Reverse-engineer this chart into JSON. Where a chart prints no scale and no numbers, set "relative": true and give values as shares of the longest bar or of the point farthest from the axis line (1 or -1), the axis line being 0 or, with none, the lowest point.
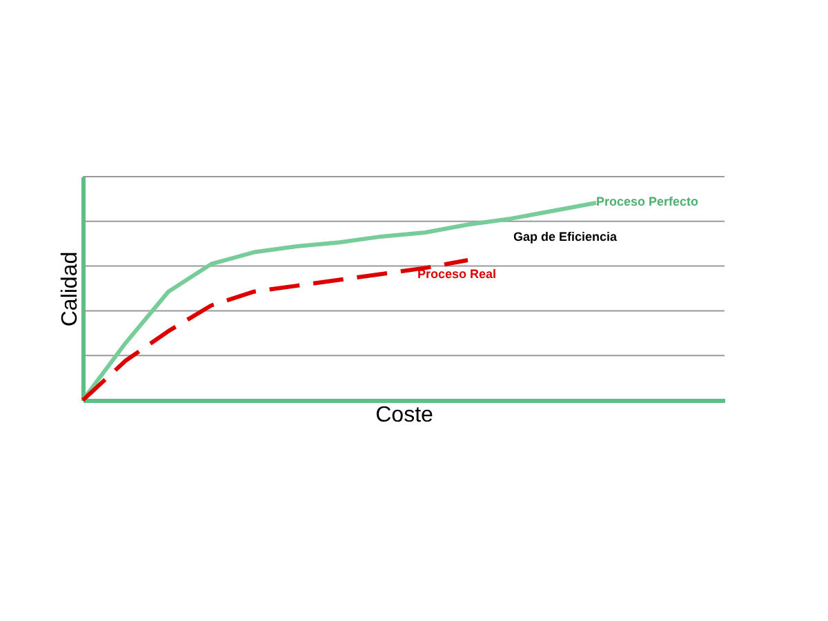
{
  "chart_data": {
    "type": "line",
    "relative": true,
    "xlabel": "Coste",
    "ylabel": "Calidad",
    "categories": [
      null,
      null,
      null,
      null,
      null,
      null,
      null,
      null,
      null,
      null,
      null,
      null,
      null
    ],
    "series": [
      {
        "name": "Proceso Perfecto",
        "color": "#77cc99",
        "line_style": "solid",
        "values": [
          0,
          0.29,
          0.55,
          0.69,
          0.75,
          0.78,
          0.8,
          0.83,
          0.85,
          0.89,
          0.92,
          0.96,
          1
        ]
      },
      {
        "name": "Proceso Real",
        "color": "#dd0000",
        "line_style": "dashed",
        "values": [
          0,
          0.2,
          0.35,
          0.48,
          0.55,
          0.58,
          0.61,
          0.64,
          0.67,
          0.71,
          null,
          null,
          null
        ]
      }
    ],
    "annotations": [
      "Gap de Eficiencia"
    ],
    "grid": "y",
    "legend": false,
    "marker": "none"
  }
}
